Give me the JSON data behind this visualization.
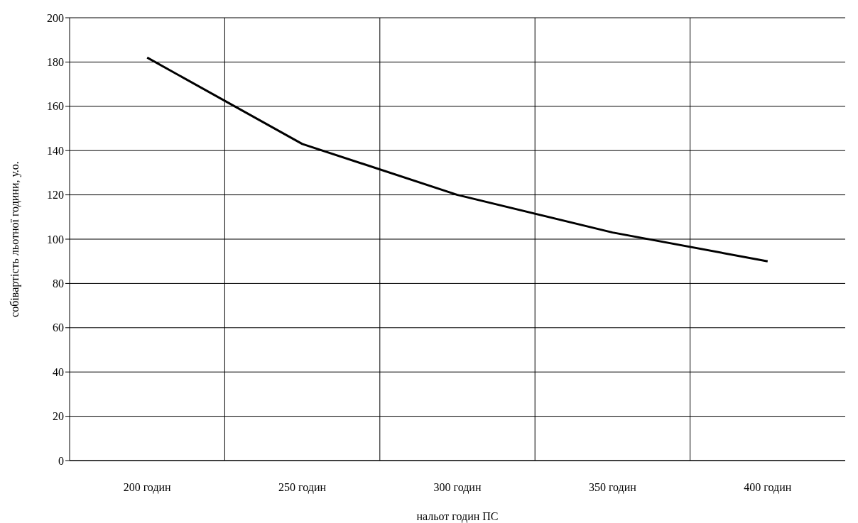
{
  "chart_data": {
    "type": "line",
    "xlabel": "нальот годин ПС",
    "ylabel": "собівартість льотної години, у.о.",
    "categories": [
      "200 годин",
      "250 годин",
      "300 годин",
      "350 годин",
      "400 годин"
    ],
    "series": [
      {
        "color": "#000000",
        "values": [
          182,
          143,
          120,
          103,
          90
        ]
      }
    ],
    "ylim": [
      0,
      200
    ],
    "yticks": [
      0,
      20,
      40,
      60,
      80,
      100,
      120,
      140,
      160,
      180,
      200
    ],
    "grid": true,
    "legend": false,
    "marker": "none",
    "line_style": "solid"
  }
}
